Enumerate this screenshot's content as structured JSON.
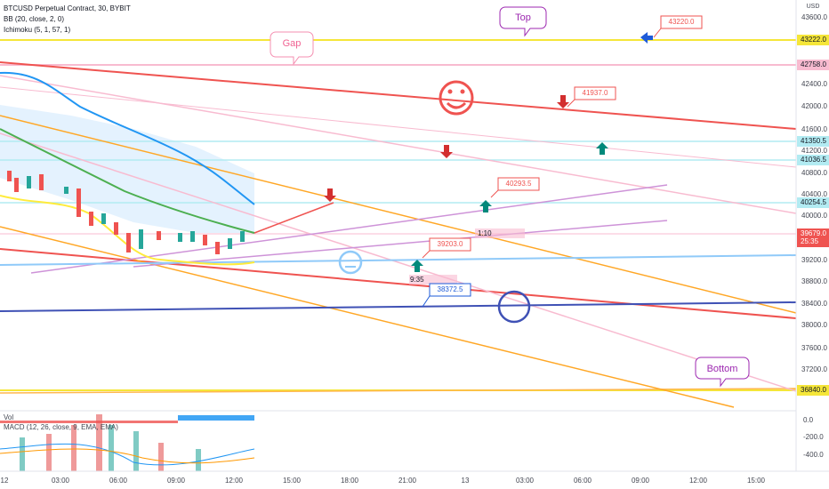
{
  "legend": [
    "BTCUSD Perpetual Contract, 30, BYBIT",
    "BB (20, close, 2, 0)",
    "Ichimoku (5, 1, 57, 1)"
  ],
  "lower_legend": [
    "Vol",
    "MACD (12, 26, close, 9, EMA, EMA)"
  ],
  "currency": "USD",
  "price_axis": [
    "43600.0",
    "42400.0",
    "42000.0",
    "41600.0",
    "41200.0",
    "40800.0",
    "40400.0",
    "40000.0",
    "39200.0",
    "38800.0",
    "38400.0",
    "38000.0",
    "37600.0",
    "37200.0"
  ],
  "price_badges": [
    "43222.0",
    "42758.0",
    "41350.5",
    "41036.5",
    "40254.5",
    "36840.0"
  ],
  "last_price": {
    "price": "39679.0",
    "countdown": "25:35"
  },
  "macd_axis": [
    "0.0",
    "-200.0",
    "-400.0"
  ],
  "time_axis": [
    "12",
    "03:00",
    "06:00",
    "09:00",
    "12:00",
    "15:00",
    "18:00",
    "21:00",
    "13",
    "03:00",
    "06:00",
    "09:00",
    "12:00",
    "15:00"
  ],
  "callouts": [
    "Top",
    "Gap",
    "Bottom"
  ],
  "price_notes": [
    "43220.0",
    "41937.0",
    "40293.5",
    "39203.0",
    "38372.5"
  ],
  "ranges": [
    "1:10",
    "9:35"
  ]
}
